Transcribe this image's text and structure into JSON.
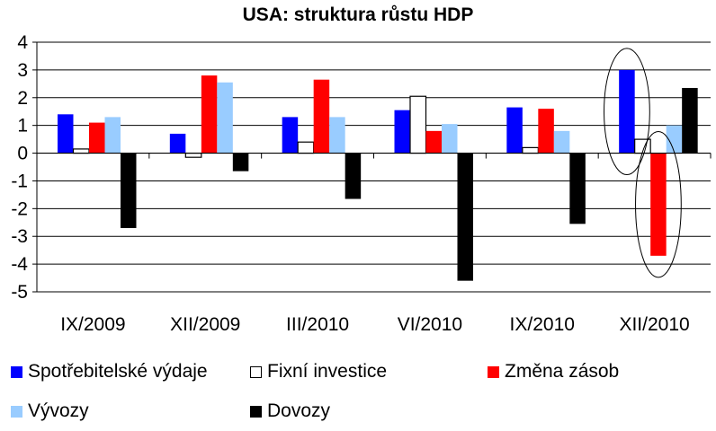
{
  "chart_data": {
    "type": "bar",
    "title": "USA: struktura růstu HDP",
    "categories": [
      "IX/2009",
      "XII/2009",
      "III/2010",
      "VI/2010",
      "IX/2010",
      "XII/2010"
    ],
    "ylim": [
      -5,
      4
    ],
    "yticks": [
      4,
      3,
      2,
      1,
      0,
      -1,
      -2,
      -3,
      -4,
      -5
    ],
    "grid": true,
    "legend_position": "bottom",
    "series": [
      {
        "name": "Spotřebitelské výdaje",
        "color": "#0000ff",
        "values": [
          1.4,
          0.7,
          1.3,
          1.55,
          1.65,
          3.0
        ]
      },
      {
        "name": "Fixní investice",
        "color": "#ffffff",
        "values": [
          0.15,
          -0.15,
          0.4,
          2.05,
          0.2,
          0.5
        ]
      },
      {
        "name": "Změna zásob",
        "color": "#ff0000",
        "values": [
          1.1,
          2.8,
          2.65,
          0.8,
          1.6,
          -3.7
        ]
      },
      {
        "name": "Vývozy",
        "color": "#99ccff",
        "values": [
          1.3,
          2.55,
          1.3,
          1.05,
          0.8,
          1.0
        ]
      },
      {
        "name": "Dovozy",
        "color": "#000000",
        "values": [
          -2.7,
          -0.65,
          -1.65,
          -4.6,
          -2.55,
          2.35
        ]
      }
    ],
    "annotations": [
      {
        "type": "ellipse",
        "category": "XII/2010",
        "series": "Spotřebitelské výdaje"
      },
      {
        "type": "ellipse",
        "category": "XII/2010",
        "series": "Změna zásob"
      }
    ]
  }
}
